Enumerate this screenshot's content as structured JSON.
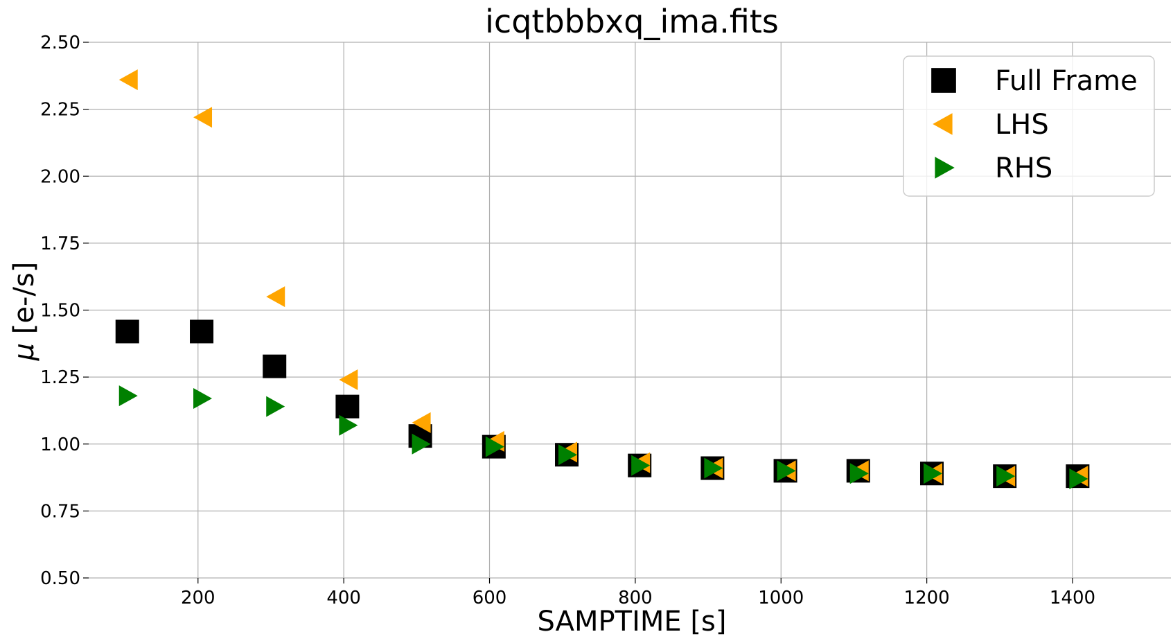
{
  "chart_data": {
    "type": "scatter",
    "title": "icqtbbbxq_ima.fits",
    "xlabel": "SAMPTIME [s]",
    "ylabel_symbol": "μ",
    "ylabel_unit": " [e-/s]",
    "xlim": [
      50,
      1535
    ],
    "ylim": [
      0.5,
      2.5
    ],
    "xticks": [
      200,
      400,
      600,
      800,
      1000,
      1200,
      1400
    ],
    "yticks": [
      "0.50",
      "0.75",
      "1.00",
      "1.25",
      "1.50",
      "1.75",
      "2.00",
      "2.25",
      "2.50"
    ],
    "grid": true,
    "legend_position": "top-right",
    "series": [
      {
        "name": "Full Frame",
        "marker": "square",
        "color": "#000000",
        "x": [
          103,
          205,
          305,
          405,
          505,
          606,
          706,
          806,
          906,
          1006,
          1106,
          1207,
          1307,
          1407
        ],
        "y": [
          1.42,
          1.42,
          1.29,
          1.14,
          1.03,
          0.99,
          0.96,
          0.92,
          0.91,
          0.9,
          0.9,
          0.89,
          0.88,
          0.88
        ]
      },
      {
        "name": "LHS",
        "marker": "triangle-left",
        "color": "#ffa500",
        "x": [
          103,
          205,
          305,
          405,
          505,
          606,
          706,
          806,
          906,
          1006,
          1106,
          1207,
          1307,
          1407
        ],
        "y": [
          2.36,
          2.22,
          1.55,
          1.24,
          1.08,
          1.01,
          0.97,
          0.93,
          0.91,
          0.9,
          0.9,
          0.89,
          0.88,
          0.88
        ]
      },
      {
        "name": "RHS",
        "marker": "triangle-right",
        "color": "#008000",
        "x": [
          103,
          205,
          305,
          405,
          505,
          606,
          706,
          806,
          906,
          1006,
          1106,
          1207,
          1307,
          1407
        ],
        "y": [
          1.18,
          1.17,
          1.14,
          1.07,
          1.0,
          0.99,
          0.96,
          0.92,
          0.91,
          0.9,
          0.89,
          0.89,
          0.88,
          0.87
        ]
      }
    ]
  }
}
